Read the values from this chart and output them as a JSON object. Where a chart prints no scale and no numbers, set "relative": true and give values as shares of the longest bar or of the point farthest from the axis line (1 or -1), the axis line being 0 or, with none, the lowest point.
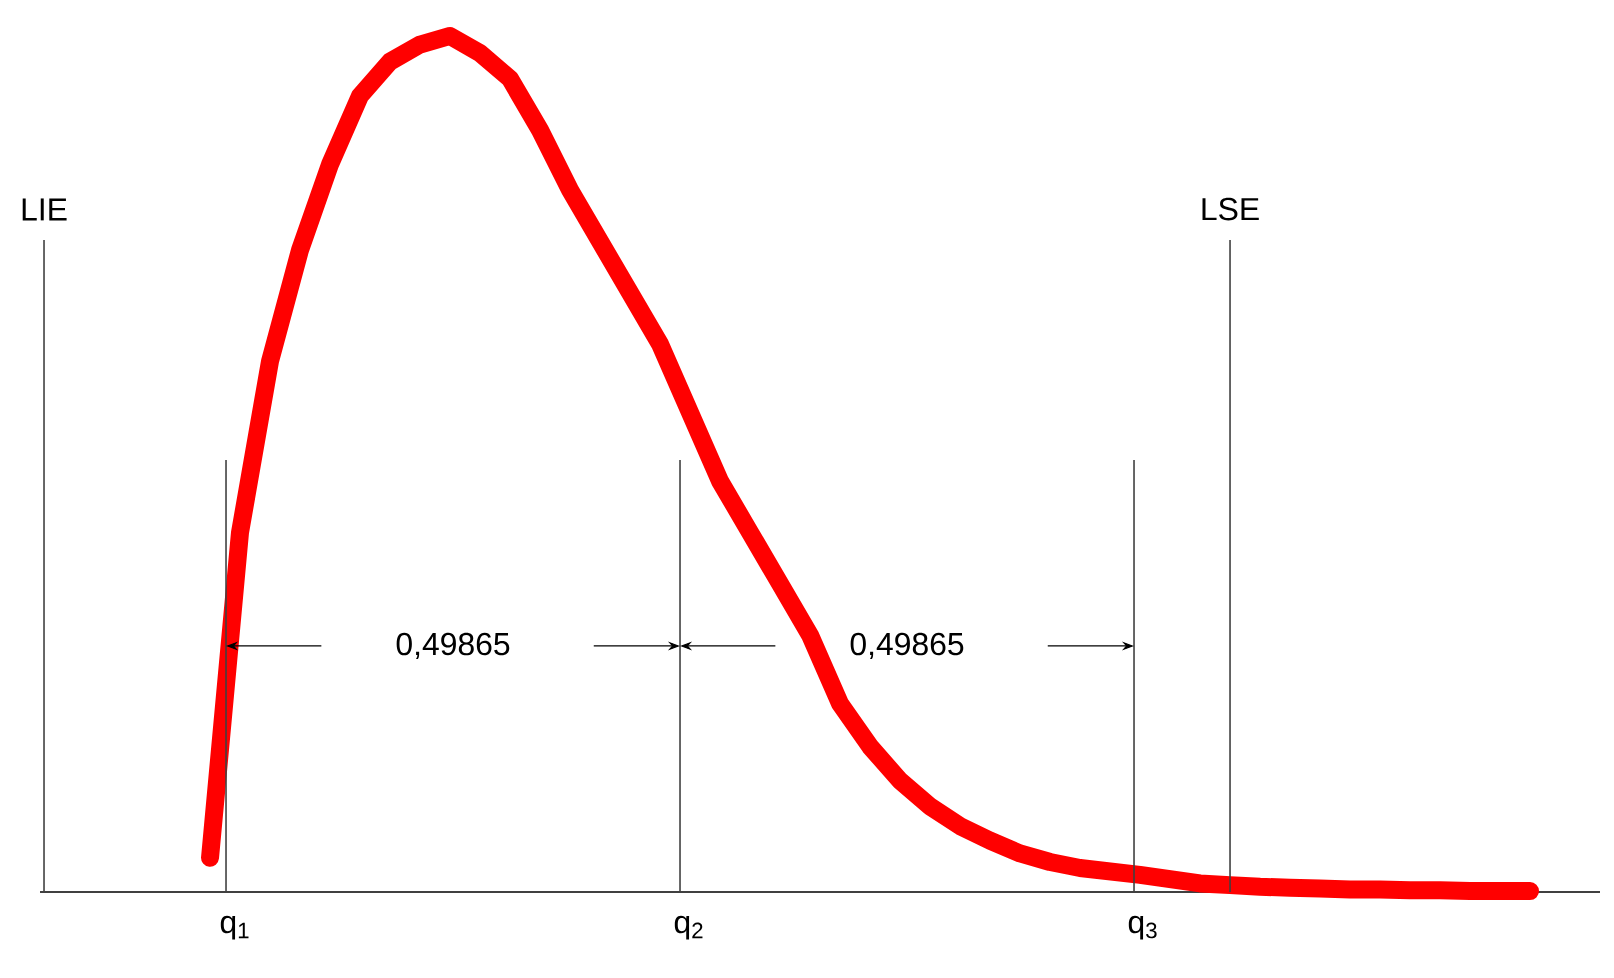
{
  "chart_data": {
    "type": "line",
    "relative": true,
    "categories": [
      null,
      null,
      null,
      null,
      null,
      null,
      null,
      null,
      null,
      null,
      null,
      null,
      null,
      null,
      null,
      null,
      null,
      null,
      null,
      null,
      null,
      null,
      null,
      null,
      null,
      null,
      null,
      null,
      null,
      null,
      null,
      null,
      null,
      null,
      null,
      null,
      null,
      null,
      null,
      null,
      null,
      null,
      null,
      null,
      null
    ],
    "series": [
      {
        "color": "#ff0000",
        "values": [
          0.04,
          0.42,
          0.62,
          0.75,
          0.85,
          0.93,
          0.97,
          0.99,
          1.0,
          0.98,
          0.95,
          0.89,
          0.82,
          0.76,
          0.7,
          0.64,
          0.56,
          0.48,
          0.42,
          0.36,
          0.3,
          0.22,
          0.17,
          0.13,
          0.1,
          0.077,
          0.06,
          0.045,
          0.035,
          0.028,
          0.024,
          0.02,
          0.015,
          0.01,
          0.008,
          0.006,
          0.005,
          0.004,
          0.003,
          0.003,
          0.002,
          0.002,
          0.001,
          0.001,
          0.001
        ]
      }
    ],
    "annotations": [
      "LIE",
      "q$_{1}$",
      "q$_{2}$",
      "q$_{3}$",
      "LSE",
      "0,49865",
      "0,49865"
    ]
  }
}
